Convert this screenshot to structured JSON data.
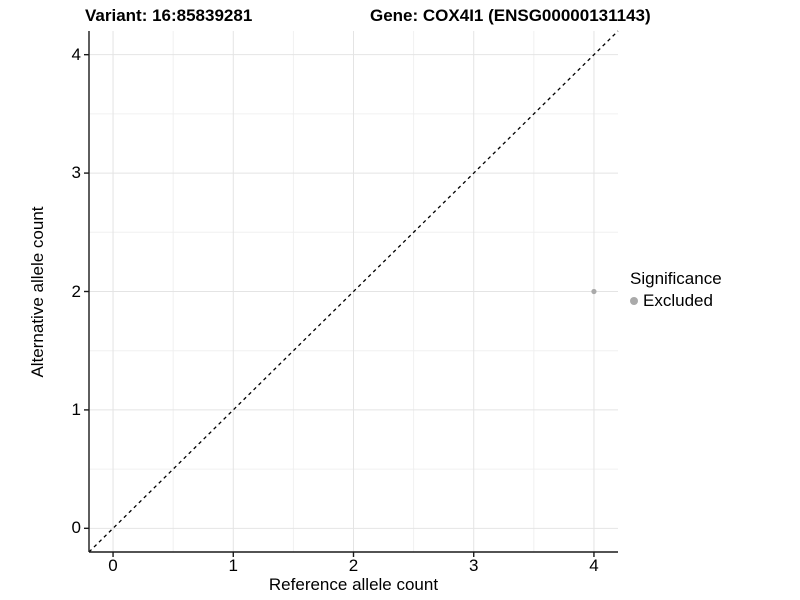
{
  "header": {
    "title_left": "Variant: 16:85839281",
    "title_right": "Gene: COX4I1 (ENSG00000131143)"
  },
  "chart_data": {
    "type": "scatter",
    "title_left": "Variant: 16:85839281",
    "title_right": "Gene: COX4I1 (ENSG00000131143)",
    "xlabel": "Reference allele count",
    "ylabel": "Alternative allele count",
    "xlim": [
      -0.2,
      4.2
    ],
    "ylim": [
      -0.2,
      4.2
    ],
    "x_ticks": [
      0,
      1,
      2,
      3,
      4
    ],
    "y_ticks": [
      0,
      1,
      2,
      3,
      4
    ],
    "grid": {
      "major": true,
      "minor": true,
      "major_color": "#e4e4e4",
      "minor_color": "#f0f0f0"
    },
    "reference_line": {
      "type": "identity",
      "from": [
        -0.2,
        -0.2
      ],
      "to": [
        4.2,
        4.2
      ],
      "style": "dashed",
      "color": "#000000"
    },
    "series": [
      {
        "name": "Excluded",
        "color": "#aaaaaa",
        "point_radius": 2.6,
        "points": [
          {
            "x": 4,
            "y": 2
          }
        ]
      }
    ],
    "legend": {
      "title": "Significance",
      "position": "right",
      "entries": [
        {
          "label": "Excluded",
          "color": "#aaaaaa"
        }
      ]
    },
    "axis_color": "#1a1a1a"
  }
}
